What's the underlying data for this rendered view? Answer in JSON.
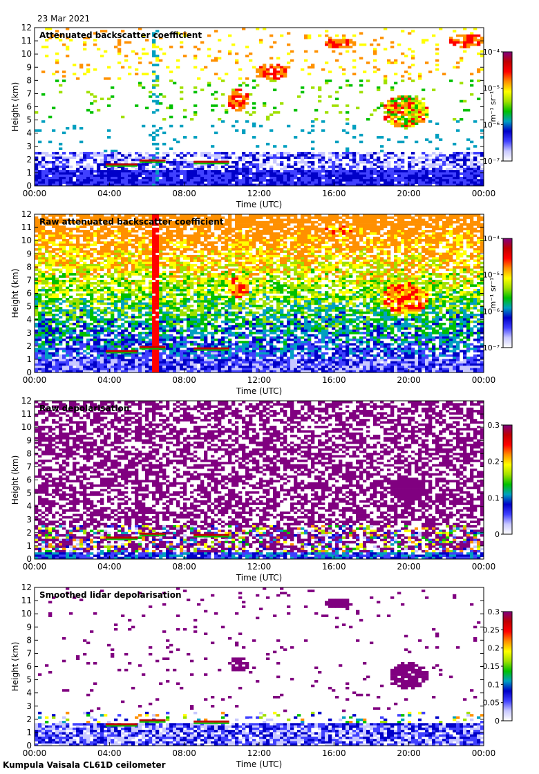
{
  "header": {
    "date": "23 Mar 2021"
  },
  "footer": {
    "instrument": "Kumpula Vaisala CL61D ceilometer"
  },
  "colormap": [
    "#ffffff",
    "#c8c8ff",
    "#4040ff",
    "#0000c8",
    "#00a0c0",
    "#00c000",
    "#a0e000",
    "#ffff00",
    "#ff9000",
    "#ff0000",
    "#c00000",
    "#800080"
  ],
  "chart_data": [
    {
      "type": "heatmap",
      "title": "Attenuated backscatter coefficient",
      "xlabel": "Time (UTC)",
      "ylabel": "Height (km)",
      "x_ticks": [
        "00:00",
        "04:00",
        "08:00",
        "12:00",
        "16:00",
        "20:00",
        "00:00"
      ],
      "y_ticks": [
        "0",
        "1",
        "2",
        "3",
        "4",
        "5",
        "6",
        "7",
        "8",
        "9",
        "10",
        "11",
        "12"
      ],
      "ylim": [
        0,
        12
      ],
      "colorbar": {
        "scale": "log",
        "unit_text": "m⁻¹ sr⁻¹",
        "tick_labels": [
          "10⁻⁴",
          "10⁻⁵",
          "10⁻⁶",
          "10⁻⁷"
        ],
        "range": [
          "1e-7",
          "1e-4"
        ]
      }
    },
    {
      "type": "heatmap",
      "title": "Raw attenuated backscatter coefficient",
      "xlabel": "Time (UTC)",
      "ylabel": "Height (km)",
      "x_ticks": [
        "00:00",
        "04:00",
        "08:00",
        "12:00",
        "16:00",
        "20:00",
        "00:00"
      ],
      "y_ticks": [
        "0",
        "1",
        "2",
        "3",
        "4",
        "5",
        "6",
        "7",
        "8",
        "9",
        "10",
        "11",
        "12"
      ],
      "ylim": [
        0,
        12
      ],
      "colorbar": {
        "scale": "log",
        "unit_text": "m⁻¹ sr⁻¹",
        "tick_labels": [
          "10⁻⁴",
          "10⁻⁵",
          "10⁻⁶",
          "10⁻⁷"
        ],
        "range": [
          "1e-7",
          "1e-4"
        ]
      }
    },
    {
      "type": "heatmap",
      "title": "Raw depolarisation",
      "xlabel": "Time (UTC)",
      "ylabel": "Height (km)",
      "x_ticks": [
        "00:00",
        "04:00",
        "08:00",
        "12:00",
        "16:00",
        "20:00",
        "00:00"
      ],
      "y_ticks": [
        "0",
        "1",
        "2",
        "3",
        "4",
        "5",
        "6",
        "7",
        "8",
        "9",
        "10",
        "11",
        "12"
      ],
      "ylim": [
        0,
        12
      ],
      "colorbar": {
        "scale": "linear",
        "unit_text": "",
        "tick_labels": [
          "0.3",
          "0.2",
          "0.1",
          "0"
        ],
        "range": [
          0,
          0.3
        ]
      }
    },
    {
      "type": "heatmap",
      "title": "Smoothed lidar depolarisation",
      "xlabel": "Time (UTC)",
      "ylabel": "Height (km)",
      "x_ticks": [
        "00:00",
        "04:00",
        "08:00",
        "12:00",
        "16:00",
        "20:00",
        "00:00"
      ],
      "y_ticks": [
        "0",
        "1",
        "2",
        "3",
        "4",
        "5",
        "6",
        "7",
        "8",
        "9",
        "10",
        "11",
        "12"
      ],
      "ylim": [
        0,
        12
      ],
      "colorbar": {
        "scale": "linear",
        "unit_text": "",
        "tick_labels": [
          "0.3",
          "0.25",
          "0.2",
          "0.15",
          "0.1",
          "0.05",
          "0"
        ],
        "range": [
          0,
          0.3
        ]
      }
    }
  ]
}
